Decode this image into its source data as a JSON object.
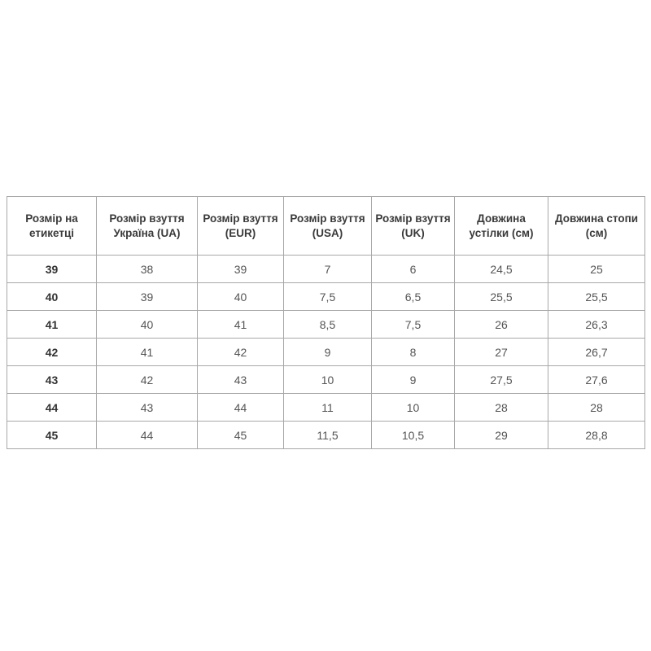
{
  "table": {
    "headers": [
      "Розмір на етикетці",
      "Розмір взуття Україна (UA)",
      "Розмір взуття (EUR)",
      "Розмір взуття (USA)",
      "Розмір взуття (UK)",
      "Довжина устілки (см)",
      "Довжина стопи (см)"
    ],
    "rows": [
      [
        "39",
        "38",
        "39",
        "7",
        "6",
        "24,5",
        "25"
      ],
      [
        "40",
        "39",
        "40",
        "7,5",
        "6,5",
        "25,5",
        "25,5"
      ],
      [
        "41",
        "40",
        "41",
        "8,5",
        "7,5",
        "26",
        "26,3"
      ],
      [
        "42",
        "41",
        "42",
        "9",
        "8",
        "27",
        "26,7"
      ],
      [
        "43",
        "42",
        "43",
        "10",
        "9",
        "27,5",
        "27,6"
      ],
      [
        "44",
        "43",
        "44",
        "11",
        "10",
        "28",
        "28"
      ],
      [
        "45",
        "44",
        "45",
        "11,5",
        "10,5",
        "29",
        "28,8"
      ]
    ]
  }
}
